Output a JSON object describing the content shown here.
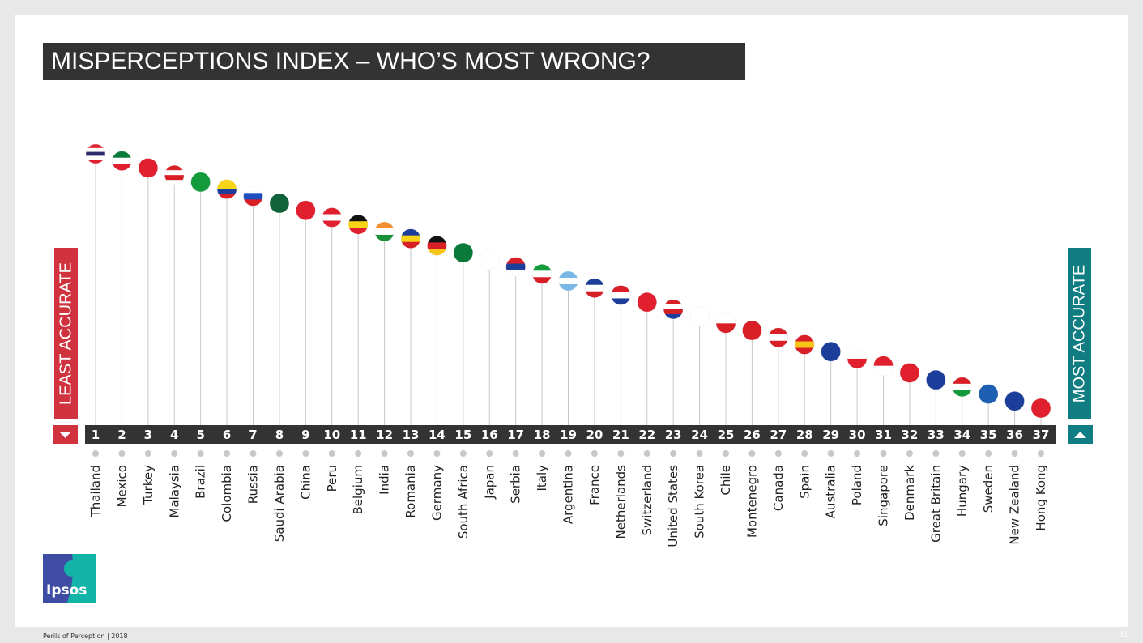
{
  "title": "MISPERCEPTIONS INDEX – WHO’S MOST WRONG?",
  "left_label": "LEAST ACCURATE",
  "right_label": "MOST ACCURATE",
  "colors": {
    "least": "#d0323e",
    "most": "#0f7d82",
    "bar": "#333333"
  },
  "footer": "Perils of Perception  | 2018",
  "page_number": "31",
  "logo_text": "Ipsos",
  "chart_data": {
    "type": "scatter",
    "title": "",
    "xlabel": "",
    "ylabel": "",
    "categories": [
      "Thailand",
      "Mexico",
      "Turkey",
      "Malaysia",
      "Brazil",
      "Colombia",
      "Russia",
      "Saudi Arabia",
      "China",
      "Peru",
      "Belgium",
      "India",
      "Romania",
      "Germany",
      "South Africa",
      "Japan",
      "Serbia",
      "Italy",
      "Argentina",
      "France",
      "Netherlands",
      "Switzerland",
      "United States",
      "South Korea",
      "Chile",
      "Montenegro",
      "Canada",
      "Spain",
      "Australia",
      "Poland",
      "Singapore",
      "Denmark",
      "Great Britain",
      "Hungary",
      "Sweden",
      "New Zealand",
      "Hong Kong"
    ],
    "ranks": [
      1,
      2,
      3,
      4,
      5,
      6,
      7,
      8,
      9,
      10,
      11,
      12,
      13,
      14,
      15,
      16,
      17,
      18,
      19,
      20,
      21,
      22,
      23,
      24,
      25,
      26,
      27,
      28,
      29,
      30,
      31,
      32,
      33,
      34,
      35,
      36,
      37
    ],
    "flag_colors": [
      [
        "#e0202f",
        "#fff",
        "#2d2a6b",
        "#fff",
        "#e0202f"
      ],
      [
        "#0a7a3a",
        "#fff",
        "#e0202f"
      ],
      [
        "#e0202f"
      ],
      [
        "#d81f26",
        "#fff",
        "#d81f26",
        "#fff"
      ],
      [
        "#139a3a"
      ],
      [
        "#f7d417",
        "#f7d417",
        "#1d3d9a",
        "#d81f26"
      ],
      [
        "#fff",
        "#1d4ec0",
        "#d81f26"
      ],
      [
        "#11643a"
      ],
      [
        "#e0202f"
      ],
      [
        "#e0202f",
        "#fff",
        "#e0202f"
      ],
      [
        "#111",
        "#f7d417",
        "#e0202f"
      ],
      [
        "#f39032",
        "#fff",
        "#1a8f3a"
      ],
      [
        "#1d3d9a",
        "#f7d417",
        "#d81f26"
      ],
      [
        "#111",
        "#d81f26",
        "#f7c417"
      ],
      [
        "#0a7a3a"
      ],
      [
        "#fff"
      ],
      [
        "#d81f26",
        "#1d3d9a",
        "#fff"
      ],
      [
        "#139a3a",
        "#fff",
        "#d81f26"
      ],
      [
        "#79b8e6",
        "#fff",
        "#79b8e6"
      ],
      [
        "#1d3d9a",
        "#fff",
        "#d81f26"
      ],
      [
        "#d81f26",
        "#fff",
        "#1d3d9a"
      ],
      [
        "#e0202f"
      ],
      [
        "#d81f26",
        "#fff",
        "#d81f26",
        "#1d3d9a"
      ],
      [
        "#fff"
      ],
      [
        "#fff",
        "#d81f26"
      ],
      [
        "#d81f26"
      ],
      [
        "#d81f26",
        "#fff",
        "#d81f26"
      ],
      [
        "#d81f26",
        "#f7c417",
        "#d81f26"
      ],
      [
        "#1d3d9a"
      ],
      [
        "#fff",
        "#e0202f"
      ],
      [
        "#e0202f",
        "#fff"
      ],
      [
        "#e0202f"
      ],
      [
        "#1d3d9a"
      ],
      [
        "#d81f26",
        "#fff",
        "#139a3a"
      ],
      [
        "#1d5fb0"
      ],
      [
        "#1d3d9a"
      ],
      [
        "#e0202f"
      ]
    ]
  }
}
